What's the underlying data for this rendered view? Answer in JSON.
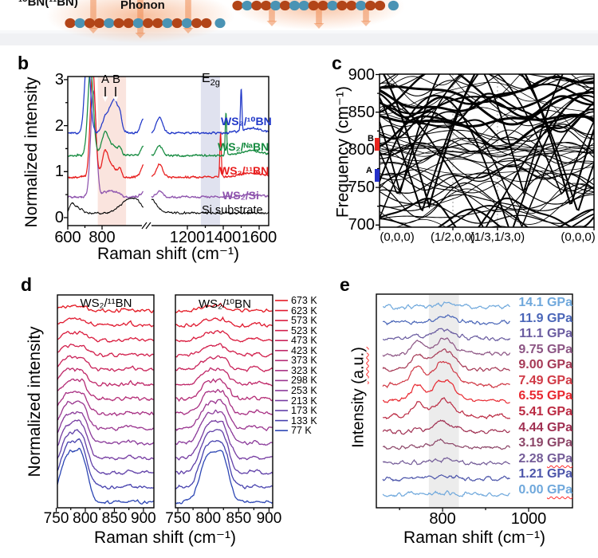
{
  "schematic": {
    "label_left": "¹⁰BN(¹¹BN)",
    "phonon_label": "Phonon",
    "atom_color_orange": "#e2653c",
    "atom_color_blue": "#7fc3de",
    "arrow_color": "rgba(238,140,84,0.55)"
  },
  "panels": {
    "b": {
      "letter": "b",
      "ylabel": "Normalized intensity",
      "xlabel": "Raman shift (cm⁻¹)"
    },
    "c": {
      "letter": "c",
      "ylabel": "Frequency (cm⁻¹)"
    },
    "d": {
      "letter": "d",
      "ylabel": "Normalized intensity",
      "xlabel": "Raman shift (cm⁻¹)"
    },
    "e": {
      "letter": "e",
      "ylabel_main": "Intensity ",
      "ylabel_unit": "(a.u.)",
      "xlabel": "Raman shift (cm⁻¹)"
    }
  },
  "chart_data": [
    {
      "id": "b",
      "type": "line",
      "xlabel": "Raman shift (cm⁻¹)",
      "ylabel": "Normalized intensity",
      "yticks": [
        0,
        1,
        2,
        3
      ],
      "ylim": [
        -0.17,
        3.07
      ],
      "x_axis_break": true,
      "xticks_seg1": [
        600,
        800
      ],
      "xticks_seg2": [
        1200,
        1400,
        1600
      ],
      "xminor_seg1": [
        700
      ],
      "xminor_seg2": [
        1300,
        1500
      ],
      "seg1_range": [
        600,
        1040
      ],
      "seg2_range": [
        1000,
        1653
      ],
      "shaded_bands": [
        {
          "x0": 775,
          "x1": 940,
          "color": "#fae4de"
        },
        {
          "x0": 1275,
          "x1": 1382,
          "color": "#e0e2ef"
        }
      ],
      "annotations": [
        {
          "text": "A",
          "x": 820
        },
        {
          "text": "B",
          "x": 872
        },
        {
          "text": "E",
          "sub": "2g",
          "x": 1330
        }
      ],
      "series": [
        {
          "label": "WS₂/¹⁰BN",
          "color": "#2138c8",
          "offset": 1.84,
          "peaks": [
            [
              715,
              16,
              1.8
            ],
            [
              820,
              20,
              0.3
            ],
            [
              872,
              26,
              0.72
            ],
            [
              905,
              10,
              0.16
            ],
            [
              1045,
              18,
              0.33
            ],
            [
              1500,
              4,
              0.9
            ],
            [
              1560,
              60,
              0.1
            ]
          ]
        },
        {
          "label": "WS₂/ᴺᵃBN",
          "color": "#168b40",
          "offset": 1.35,
          "peaks": [
            [
              733,
              16,
              1.9
            ],
            [
              818,
              20,
              0.5
            ],
            [
              870,
              24,
              0.2
            ],
            [
              905,
              10,
              0.13
            ],
            [
              1045,
              18,
              0.2
            ],
            [
              1415,
              4,
              0.92
            ],
            [
              1560,
              60,
              0.1
            ]
          ]
        },
        {
          "label": "WS₂/¹¹BN",
          "color": "#e81e1e",
          "offset": 0.88,
          "peaks": [
            [
              746,
              15,
              2.3
            ],
            [
              818,
              18,
              0.55
            ],
            [
              862,
              22,
              0.22
            ],
            [
              903,
              10,
              0.18
            ],
            [
              1045,
              18,
              0.28
            ],
            [
              1385,
              4,
              0.95
            ],
            [
              1560,
              60,
              0.1
            ]
          ]
        },
        {
          "label": "WS₂/Si",
          "color": "#8f55ae",
          "offset": 0.45,
          "peaks": [
            [
              750,
              16,
              2.3
            ],
            [
              815,
              20,
              0.1
            ],
            [
              860,
              20,
              0.12
            ],
            [
              900,
              12,
              0.08
            ],
            [
              1045,
              18,
              0.12
            ],
            [
              1560,
              70,
              0.05
            ]
          ]
        },
        {
          "label": "Si substrate",
          "color": "#000000",
          "offset": 0.1,
          "peaks": [
            [
              625,
              14,
              0.2
            ],
            [
              655,
              12,
              0.12
            ],
            [
              680,
              10,
              0.07
            ],
            [
              960,
              50,
              0.3
            ],
            [
              1010,
              24,
              0.1
            ]
          ]
        }
      ]
    },
    {
      "id": "c",
      "type": "line",
      "ylabel": "Frequency (cm⁻¹)",
      "yticks": [
        700,
        750,
        800,
        850,
        900
      ],
      "yminor": [
        725,
        775,
        825,
        875
      ],
      "ylim": [
        700,
        900
      ],
      "xtick_labels": [
        "(0,0,0)",
        "(1/2,0,0)",
        "(1/3,1/3,0)",
        "(0,0,0)"
      ],
      "xtick_label_pos": [
        0.082,
        0.342,
        0.55,
        0.926
      ],
      "gridlines_x": [
        0.342,
        0.55
      ],
      "side_markers": [
        {
          "label": "B",
          "color": "#e8251e",
          "y0": 799,
          "y1": 816
        },
        {
          "label": "A",
          "color": "#2430c8",
          "y0": 757,
          "y1": 774
        }
      ],
      "band_color": "#000000",
      "n_bands": 46
    },
    {
      "id": "d",
      "type": "line",
      "xlabel": "Raman shift (cm⁻¹)",
      "ylabel": "Normalized intensity",
      "xticks": [
        750,
        800,
        850,
        900
      ],
      "xminor": [
        775,
        825,
        875
      ],
      "panels": [
        {
          "title": "WS₂/¹¹BN",
          "xlim": [
            752,
            918
          ],
          "peak_centers": [
            770,
            794
          ]
        },
        {
          "title": "WS₂/¹⁰BN",
          "xlim": [
            746,
            906
          ],
          "peak_centers": [
            800,
            824
          ]
        }
      ],
      "temperatures": [
        "673 K",
        "623 K",
        "573 K",
        "523 K",
        "473 K",
        "423 K",
        "373 K",
        "323 K",
        "298 K",
        "253 K",
        "213 K",
        "173 K",
        "133 K",
        "77 K"
      ],
      "colors": [
        "#e41a24",
        "#e01a30",
        "#da1c3e",
        "#d21f4c",
        "#c9235a",
        "#bf2768",
        "#b42c76",
        "#a83184",
        "#9a3690",
        "#8a3a9a",
        "#763da2",
        "#6040a8",
        "#4742ae",
        "#2c46b4"
      ]
    },
    {
      "id": "e",
      "type": "line",
      "xlabel": "Raman shift (cm⁻¹)",
      "ylabel": "Intensity (a.u.)",
      "xticks": [
        800,
        1000
      ],
      "xminor": [
        700,
        900
      ],
      "xlim": [
        646,
        1102
      ],
      "shaded_band": {
        "x0": 768,
        "x1": 838,
        "color": "#ececec"
      },
      "curves": [
        {
          "pressure": "14.1",
          "unit": "GPa",
          "color": "#6fa8dc",
          "amp": 0.15,
          "underline": false
        },
        {
          "pressure": "11.9",
          "unit": "GPa",
          "color": "#4a66b8",
          "amp": 0.3,
          "underline": false
        },
        {
          "pressure": "11.1",
          "unit": "GPa",
          "color": "#6a5ca0",
          "amp": 0.5,
          "underline": false
        },
        {
          "pressure": "9.75",
          "unit": "GPa",
          "color": "#8c5584",
          "amp": 0.8,
          "underline": false
        },
        {
          "pressure": "9.00",
          "unit": "GPa",
          "color": "#a63a56",
          "amp": 1.1,
          "underline": false
        },
        {
          "pressure": "7.49",
          "unit": "GPa",
          "color": "#d03a46",
          "amp": 1.3,
          "underline": false
        },
        {
          "pressure": "6.55",
          "unit": "GPa",
          "color": "#e82830",
          "amp": 1.15,
          "underline": false
        },
        {
          "pressure": "5.41",
          "unit": "GPa",
          "color": "#bb2a42",
          "amp": 0.9,
          "underline": false
        },
        {
          "pressure": "4.44",
          "unit": "GPa",
          "color": "#a03052",
          "amp": 0.55,
          "underline": false
        },
        {
          "pressure": "3.19",
          "unit": "GPa",
          "color": "#8c4668",
          "amp": 0.35,
          "underline": false
        },
        {
          "pressure": "2.28",
          "unit": "GPa",
          "color": "#745c98",
          "amp": 0.2,
          "underline": true
        },
        {
          "pressure": "1.21",
          "unit": "GPa",
          "color": "#4c55aa",
          "amp": 0.15,
          "underline": false
        },
        {
          "pressure": "0.00",
          "unit": "GPa",
          "color": "#6fa8dc",
          "amp": 0.1,
          "underline": true
        }
      ]
    }
  ]
}
